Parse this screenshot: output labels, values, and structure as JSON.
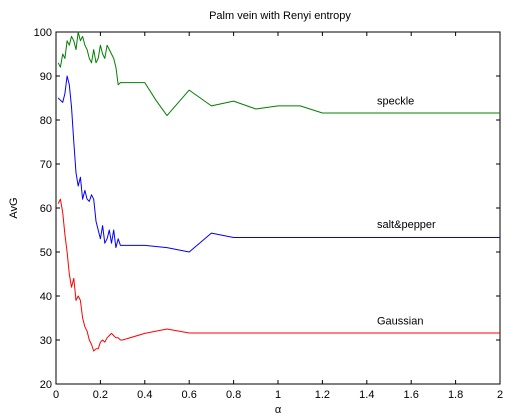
{
  "chart_data": {
    "type": "line",
    "title": "Palm vein with Renyi entropy",
    "xlabel": "α",
    "ylabel": "AvG",
    "xlim": [
      0,
      2
    ],
    "ylim": [
      20,
      100
    ],
    "xticks": [
      0,
      0.2,
      0.4,
      0.6,
      0.8,
      1,
      1.2,
      1.4,
      1.6,
      1.8,
      2
    ],
    "xtick_labels": [
      "0",
      "0.2",
      "0.4",
      "0.6",
      "0.8",
      "1",
      "1.2",
      "1.4",
      "1.6",
      "1.8",
      "2"
    ],
    "yticks": [
      20,
      30,
      40,
      50,
      60,
      70,
      80,
      90,
      100
    ],
    "ytick_labels": [
      "20",
      "30",
      "40",
      "50",
      "60",
      "70",
      "80",
      "90",
      "100"
    ],
    "grid": false,
    "legend": "none",
    "series": [
      {
        "name": "speckle",
        "color": "#008000",
        "label_at": [
          1.5,
          83.5
        ],
        "x": [
          0.01,
          0.02,
          0.03,
          0.04,
          0.05,
          0.06,
          0.07,
          0.08,
          0.09,
          0.1,
          0.11,
          0.12,
          0.13,
          0.14,
          0.15,
          0.16,
          0.17,
          0.18,
          0.19,
          0.2,
          0.21,
          0.22,
          0.23,
          0.24,
          0.25,
          0.26,
          0.27,
          0.28,
          0.29,
          0.3,
          0.35,
          0.4,
          0.45,
          0.5,
          0.6,
          0.7,
          0.8,
          0.9,
          1.0,
          1.1,
          1.2,
          1.5,
          2.0
        ],
        "y": [
          93,
          92,
          95,
          94,
          98,
          97,
          99,
          98,
          96,
          100,
          98,
          99,
          97,
          96,
          94,
          93,
          96,
          93,
          94,
          97,
          95,
          94,
          97,
          96,
          95,
          94,
          92,
          88,
          88.5,
          88.5,
          88.5,
          88.5,
          84.5,
          81,
          86.8,
          83.2,
          84.3,
          82.5,
          83.2,
          83.2,
          81.6,
          81.6,
          81.6
        ]
      },
      {
        "name": "salt&pepper",
        "color": "#0000ff",
        "label_at": [
          1.5,
          55.5
        ],
        "x": [
          0.01,
          0.02,
          0.03,
          0.04,
          0.05,
          0.06,
          0.07,
          0.08,
          0.09,
          0.1,
          0.11,
          0.12,
          0.13,
          0.14,
          0.15,
          0.16,
          0.17,
          0.18,
          0.19,
          0.2,
          0.21,
          0.22,
          0.23,
          0.24,
          0.25,
          0.26,
          0.27,
          0.28,
          0.29,
          0.3,
          0.4,
          0.5,
          0.6,
          0.7,
          0.8,
          1.0,
          1.5,
          2.0
        ],
        "y": [
          85,
          84.5,
          84,
          86,
          90,
          88,
          83,
          75,
          68,
          65,
          67,
          62,
          64,
          62,
          61.5,
          63,
          62,
          57,
          55,
          53,
          56,
          52,
          53,
          55,
          52,
          55,
          51,
          53,
          51.5,
          51.5,
          51.5,
          51,
          50,
          54.3,
          53.3,
          53.3,
          53.3,
          53.3
        ]
      },
      {
        "name": "Gaussian",
        "color": "#ff0000",
        "label_at": [
          1.5,
          33.5
        ],
        "x": [
          0.01,
          0.02,
          0.03,
          0.04,
          0.05,
          0.06,
          0.07,
          0.08,
          0.09,
          0.1,
          0.11,
          0.12,
          0.13,
          0.14,
          0.15,
          0.16,
          0.17,
          0.18,
          0.19,
          0.2,
          0.21,
          0.22,
          0.23,
          0.24,
          0.25,
          0.26,
          0.27,
          0.28,
          0.29,
          0.3,
          0.4,
          0.5,
          0.6,
          0.7,
          0.8,
          1.0,
          1.5,
          2.0
        ],
        "y": [
          61,
          62,
          59,
          54,
          50,
          45,
          42,
          44,
          39,
          40,
          39,
          35,
          33,
          32,
          30,
          29,
          27.5,
          28,
          28,
          29.5,
          30,
          29.5,
          30.5,
          31,
          31.5,
          31,
          30.5,
          30.5,
          30,
          30,
          31.5,
          32.5,
          31.6,
          31.6,
          31.6,
          31.6,
          31.6,
          31.6
        ]
      }
    ]
  }
}
